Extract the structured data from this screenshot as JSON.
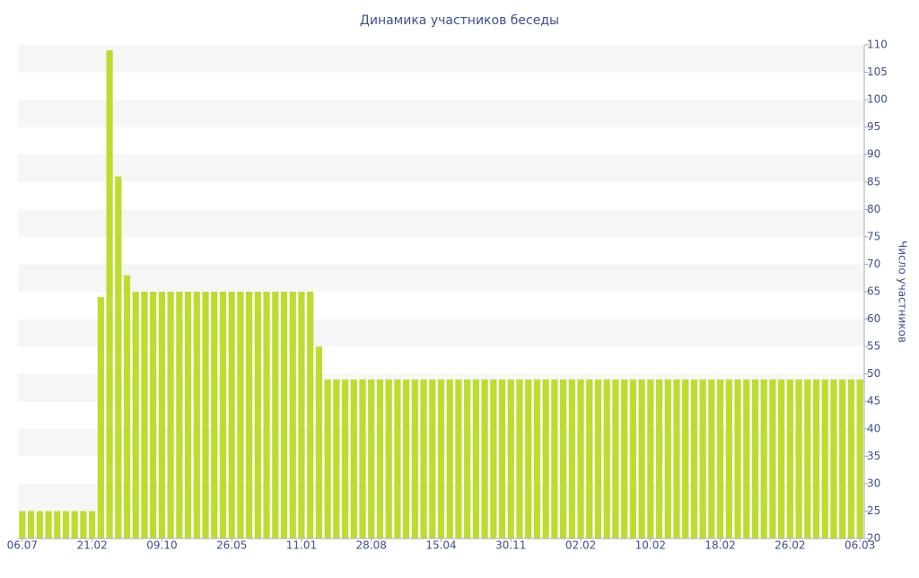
{
  "chart_data": {
    "type": "bar",
    "title": "Динамика участников беседы",
    "y_axis_label": "Число участников",
    "categories": [
      "06.07",
      null,
      null,
      null,
      null,
      null,
      null,
      null,
      "21.02",
      null,
      null,
      null,
      null,
      null,
      null,
      null,
      "09.10",
      null,
      null,
      null,
      null,
      null,
      null,
      null,
      "26.05",
      null,
      null,
      null,
      null,
      null,
      null,
      null,
      "11.01",
      null,
      null,
      null,
      null,
      null,
      null,
      null,
      "28.08",
      null,
      null,
      null,
      null,
      null,
      null,
      null,
      "15.04",
      null,
      null,
      null,
      null,
      null,
      null,
      null,
      "30.11",
      null,
      null,
      null,
      null,
      null,
      null,
      null,
      "02.02",
      null,
      null,
      null,
      null,
      null,
      null,
      null,
      "10.02",
      null,
      null,
      null,
      null,
      null,
      null,
      null,
      "18.02",
      null,
      null,
      null,
      null,
      null,
      null,
      null,
      "26.02",
      null,
      null,
      null,
      null,
      null,
      null,
      null,
      "06.03"
    ],
    "values": [
      25,
      25,
      25,
      25,
      25,
      25,
      25,
      25,
      25,
      64,
      109,
      86,
      68,
      65,
      65,
      65,
      65,
      65,
      65,
      65,
      65,
      65,
      65,
      65,
      65,
      65,
      65,
      65,
      65,
      65,
      65,
      65,
      65,
      65,
      55,
      49,
      49,
      49,
      49,
      49,
      49,
      49,
      49,
      49,
      49,
      49,
      49,
      49,
      49,
      49,
      49,
      49,
      49,
      49,
      49,
      49,
      49,
      49,
      49,
      49,
      49,
      49,
      49,
      49,
      49,
      49,
      49,
      49,
      49,
      49,
      49,
      49,
      49,
      49,
      49,
      49,
      49,
      49,
      49,
      49,
      49,
      49,
      49,
      49,
      49,
      49,
      49,
      49,
      49,
      49,
      49,
      49,
      49,
      49,
      49,
      49,
      49
    ],
    "color": "#bcdd2f",
    "ylim": [
      20,
      110
    ],
    "yticks": [
      20,
      25,
      30,
      35,
      40,
      45,
      50,
      55,
      60,
      65,
      70,
      75,
      80,
      85,
      90,
      95,
      100,
      105,
      110
    ],
    "grid": true
  }
}
